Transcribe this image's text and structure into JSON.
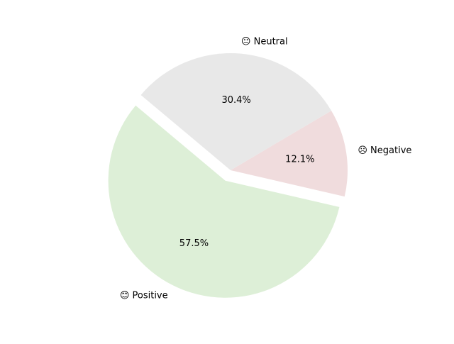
{
  "chart_data": {
    "type": "pie",
    "slices": [
      {
        "label": "😊 Positive",
        "value": 57.5,
        "pct_label": "57.5%",
        "color": "#ddefd7",
        "exploded": true
      },
      {
        "label": "☹ Negative",
        "value": 12.1,
        "pct_label": "12.1%",
        "color": "#f0dcdd",
        "exploded": false
      },
      {
        "label": "😐 Neutral",
        "value": 30.4,
        "pct_label": "30.4%",
        "color": "#e8e8e8",
        "exploded": false
      }
    ],
    "title": "",
    "legend": "none"
  }
}
